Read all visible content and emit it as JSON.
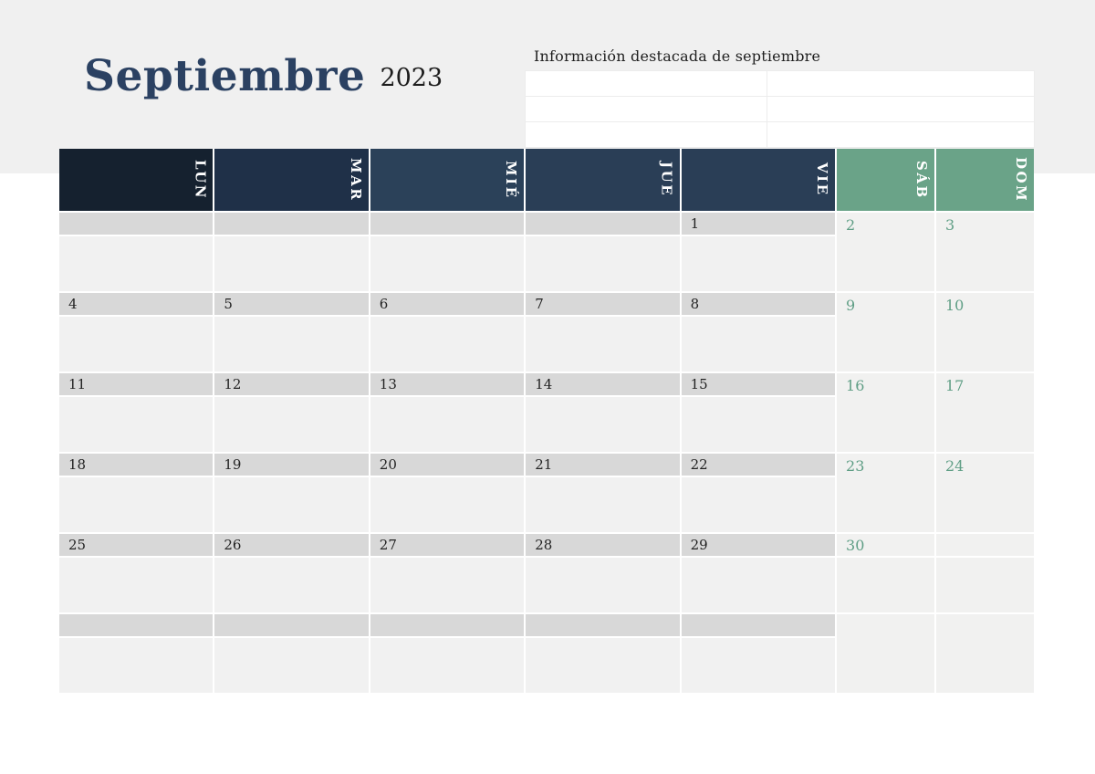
{
  "title": {
    "month": "Septiembre",
    "year": "2023"
  },
  "info_panel": {
    "heading": "Información destacada de septiembre",
    "rows": [
      [
        "",
        ""
      ],
      [
        "",
        ""
      ],
      [
        "",
        ""
      ]
    ]
  },
  "calendar": {
    "day_headers": [
      "LUN",
      "MAR",
      "MIÉ",
      "JUE",
      "VIE",
      "SÁB",
      "DOM"
    ],
    "weeks": [
      {
        "days": [
          "",
          "",
          "",
          "",
          "1",
          "2",
          "3"
        ]
      },
      {
        "days": [
          "4",
          "5",
          "6",
          "7",
          "8",
          "9",
          "10"
        ]
      },
      {
        "days": [
          "11",
          "12",
          "13",
          "14",
          "15",
          "16",
          "17"
        ]
      },
      {
        "days": [
          "18",
          "19",
          "20",
          "21",
          "22",
          "23",
          "24"
        ]
      },
      {
        "days": [
          "25",
          "26",
          "27",
          "28",
          "29",
          "30",
          ""
        ]
      },
      {
        "days": [
          "",
          "",
          "",
          "",
          "",
          "",
          ""
        ]
      }
    ]
  },
  "theme": {
    "band_bg": "#f0f0f0",
    "title_color": "#2b4162",
    "header_colors": [
      "#15212f",
      "#1f3048",
      "#2b4159",
      "#2a3e56",
      "#2a3e56",
      "#6aa388",
      "#6aa388"
    ],
    "strip_gray": "#d8d8d8",
    "cell_light": "#f1f1f1",
    "weekend_number_green": "#5f9e85"
  }
}
